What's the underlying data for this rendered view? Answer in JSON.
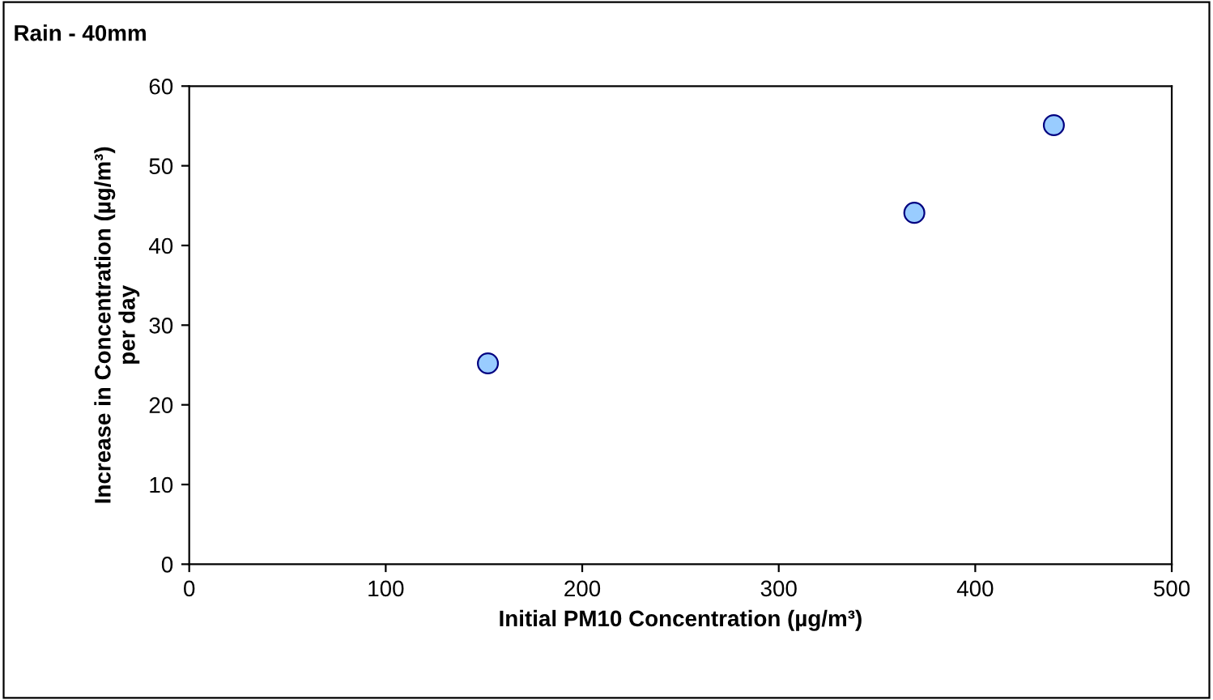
{
  "chart_data": {
    "type": "scatter",
    "title": "Rain - 40mm",
    "xlabel": "Initial PM10 Concentration (µg/m³)",
    "ylabel": "Increase in Concentration (µg/m³)\nper day",
    "x": [
      152,
      369,
      440
    ],
    "series": [
      {
        "color": "#99ccff",
        "values": [
          25.2,
          44.1,
          55.1
        ]
      }
    ],
    "xlim": [
      0,
      500
    ],
    "xticks": [
      0,
      100,
      200,
      300,
      400,
      500
    ],
    "ylim": [
      0,
      60
    ],
    "yticks": [
      0,
      10,
      20,
      30,
      40,
      50,
      60
    ],
    "grid": false,
    "legend": false,
    "marker": "circle"
  }
}
